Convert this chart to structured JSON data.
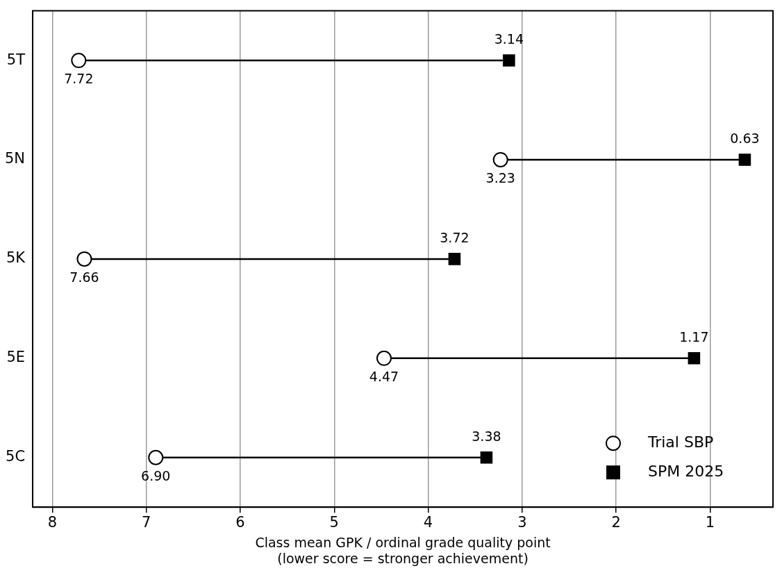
{
  "chart_data": {
    "type": "scatter",
    "orientation": "horizontal",
    "xlabel": "Class mean GPK / ordinal grade quality point\n(lower score = stronger achievement)",
    "categories": [
      "5T",
      "5N",
      "5K",
      "5E",
      "5C"
    ],
    "series": [
      {
        "name": "Trial SBP",
        "color": "#000000",
        "marker": "circle",
        "values": [
          7.72,
          3.23,
          7.66,
          4.47,
          6.9
        ],
        "value_labels": [
          "7.72",
          "3.23",
          "7.66",
          "4.47",
          "6.90"
        ]
      },
      {
        "name": "SPM 2025",
        "color": "#000000",
        "marker": "square",
        "values": [
          3.14,
          0.63,
          3.72,
          1.17,
          3.38
        ],
        "value_labels": [
          "3.14",
          "0.63",
          "3.72",
          "1.17",
          "3.38"
        ]
      }
    ],
    "xlim": [
      8.21,
      0.33
    ],
    "xticks": [
      8,
      7,
      6,
      5,
      4,
      3,
      2,
      1
    ],
    "grid": "x",
    "legend": "bottom right"
  }
}
